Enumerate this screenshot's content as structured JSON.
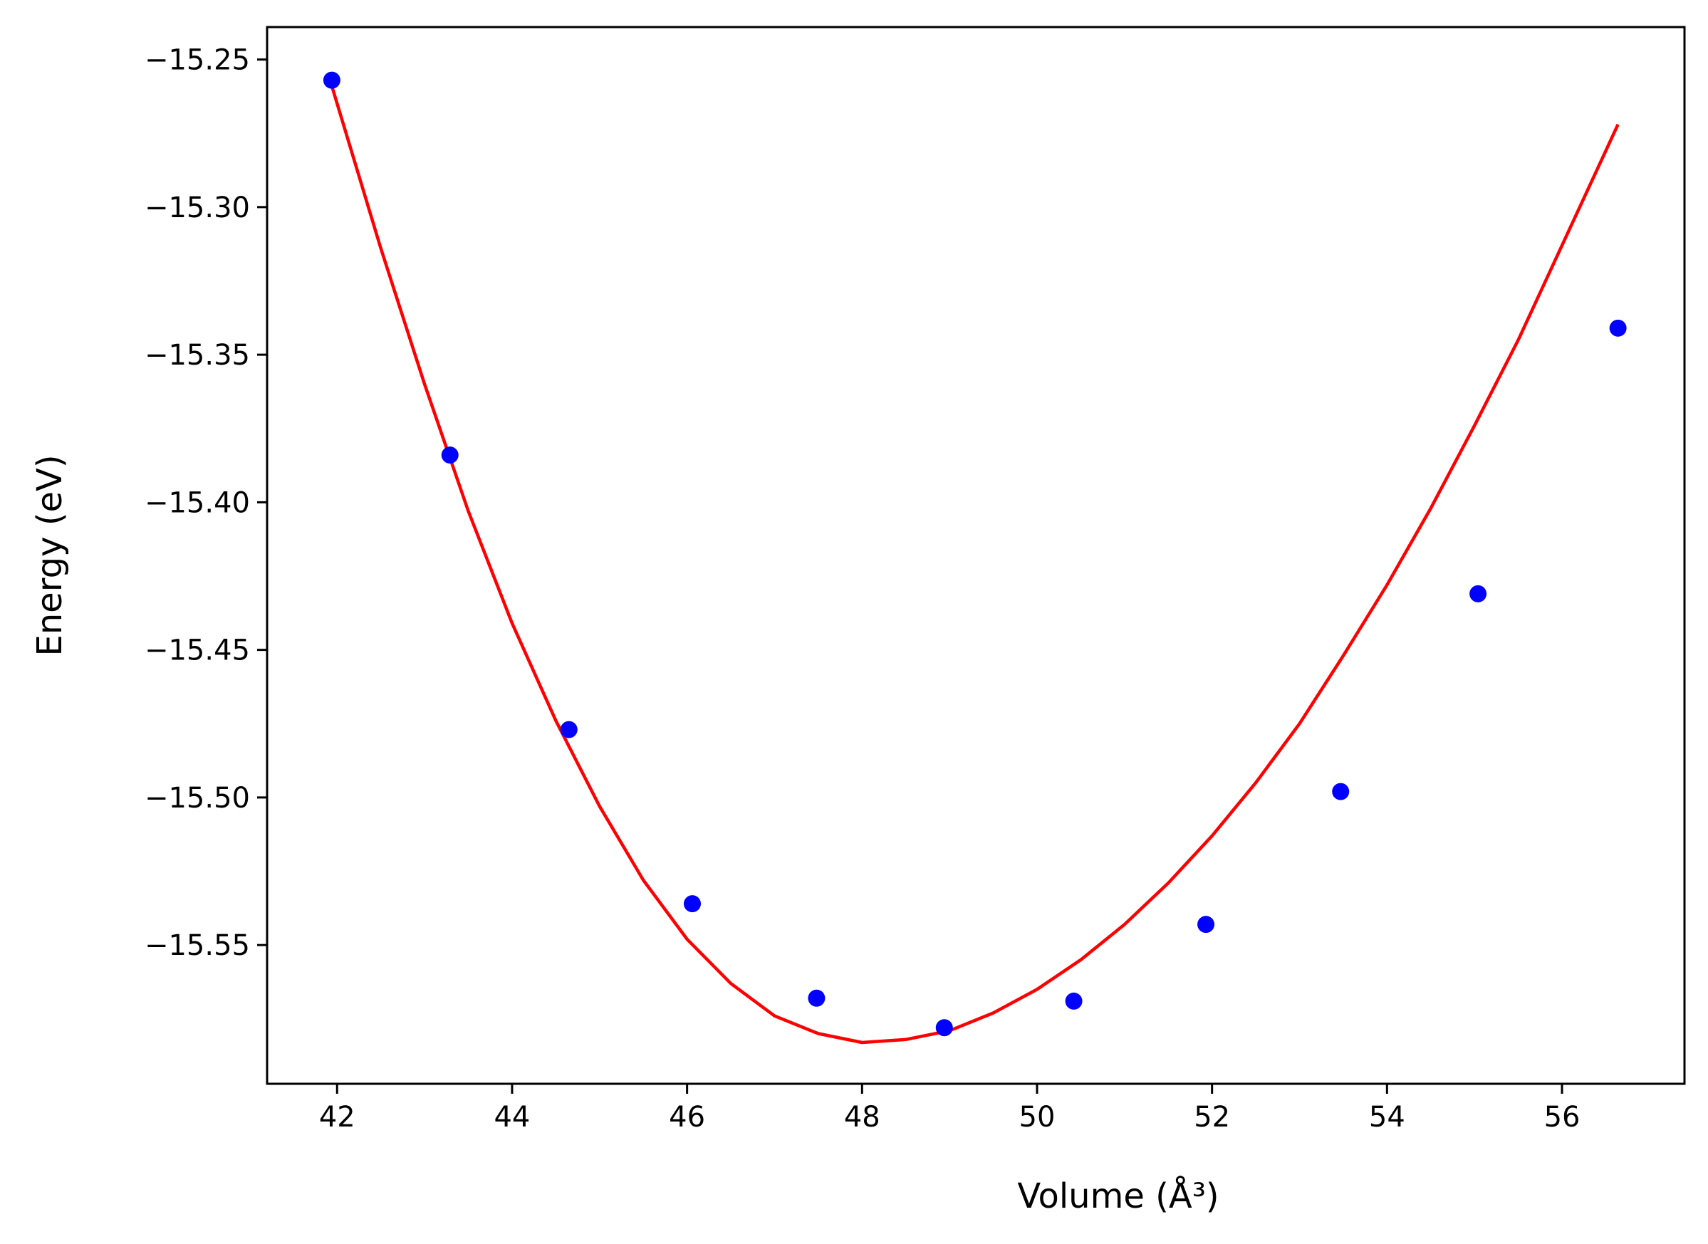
{
  "chart_data": {
    "type": "scatter",
    "title": "",
    "xlabel": "Volume (Å³)",
    "ylabel": "Energy (eV)",
    "xlim": [
      41.2,
      57.4
    ],
    "ylim": [
      -15.597,
      -15.239
    ],
    "grid": false,
    "x_ticks": [
      42,
      44,
      46,
      48,
      50,
      52,
      54,
      56
    ],
    "x_tick_labels": [
      "42",
      "44",
      "46",
      "48",
      "50",
      "52",
      "54",
      "56"
    ],
    "y_ticks": [
      -15.25,
      -15.3,
      -15.35,
      -15.4,
      -15.45,
      -15.5,
      -15.55
    ],
    "y_tick_labels": [
      "−15.25",
      "−15.30",
      "−15.35",
      "−15.40",
      "−15.45",
      "−15.50",
      "−15.55"
    ],
    "series": [
      {
        "kind": "points",
        "color": "#0000ff",
        "x": [
          41.94,
          43.29,
          44.65,
          46.06,
          47.48,
          48.94,
          50.42,
          51.93,
          53.47,
          55.04,
          56.64
        ],
        "y": [
          -15.257,
          -15.384,
          -15.477,
          -15.536,
          -15.568,
          -15.578,
          -15.569,
          -15.543,
          -15.498,
          -15.431,
          -15.341
        ]
      },
      {
        "kind": "fit-curve",
        "color": "#ff0000",
        "x": [
          41.94,
          42.5,
          43.0,
          43.5,
          44.0,
          44.5,
          45.0,
          45.5,
          46.0,
          46.5,
          47.0,
          47.5,
          48.0,
          48.5,
          49.0,
          49.5,
          50.0,
          50.5,
          51.0,
          51.5,
          52.0,
          52.5,
          53.0,
          53.5,
          54.0,
          54.5,
          55.0,
          55.5,
          56.0,
          56.64
        ],
        "y": [
          -15.259,
          -15.314,
          -15.36,
          -15.403,
          -15.441,
          -15.474,
          -15.503,
          -15.528,
          -15.548,
          -15.563,
          -15.574,
          -15.58,
          -15.583,
          -15.582,
          -15.579,
          -15.573,
          -15.565,
          -15.555,
          -15.543,
          -15.529,
          -15.513,
          -15.495,
          -15.475,
          -15.452,
          -15.428,
          -15.402,
          -15.374,
          -15.345,
          -15.313,
          -15.272
        ]
      }
    ]
  }
}
